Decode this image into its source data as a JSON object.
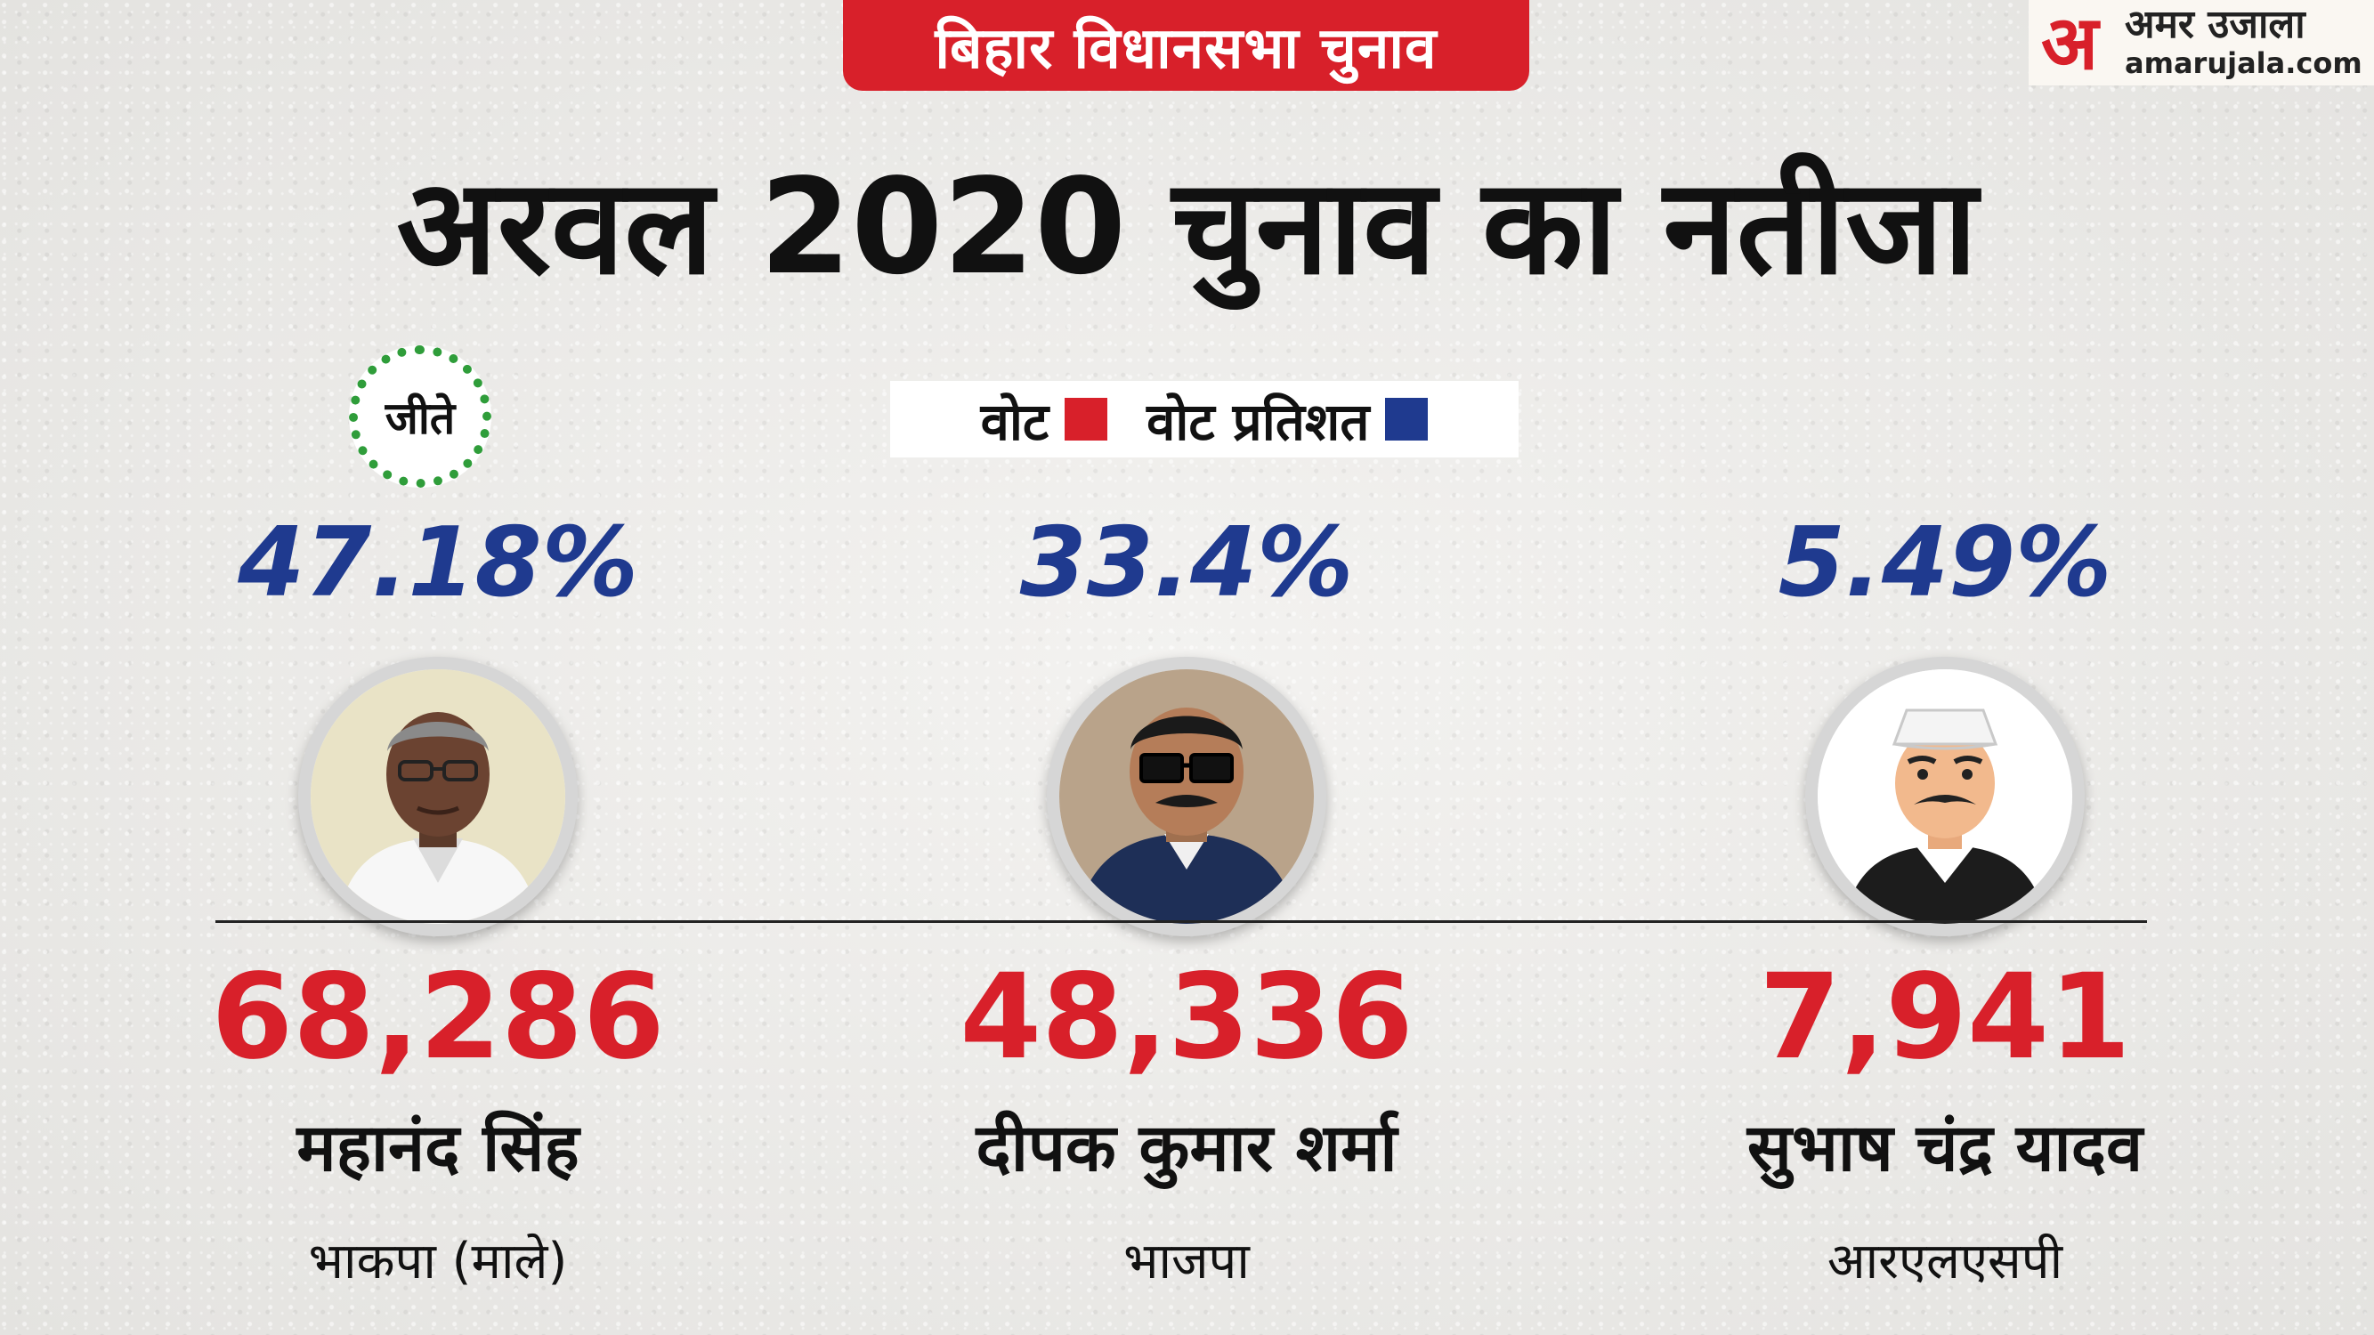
{
  "header": {
    "tag": "बिहार विधानसभा चुनाव",
    "title": "अरवल 2020 चुनाव का नतीजा"
  },
  "logo": {
    "mark": "अ",
    "name": "अमर उजाला",
    "url": "amarujala.com"
  },
  "legend": {
    "votes_label": "वोट",
    "percent_label": "वोट प्रतिशत"
  },
  "winner_badge": "जीते",
  "colors": {
    "votes": "#d8202a",
    "percent": "#1f3a8f",
    "winner_badge": "#2f9d3a"
  },
  "candidates": [
    {
      "name": "महानंद सिंह",
      "party": "भाकपा (माले)",
      "votes": "68,286",
      "percent": "47.18%",
      "winner": true,
      "avatar": "candidate-photo"
    },
    {
      "name": "दीपक कुमार शर्मा",
      "party": "भाजपा",
      "votes": "48,336",
      "percent": "33.4%",
      "winner": false,
      "avatar": "candidate-photo"
    },
    {
      "name": "सुभाष चंद्र यादव",
      "party": "आरएलएसपी",
      "votes": "7,941",
      "percent": "5.49%",
      "winner": false,
      "avatar": "cartoon-illustration"
    }
  ]
}
